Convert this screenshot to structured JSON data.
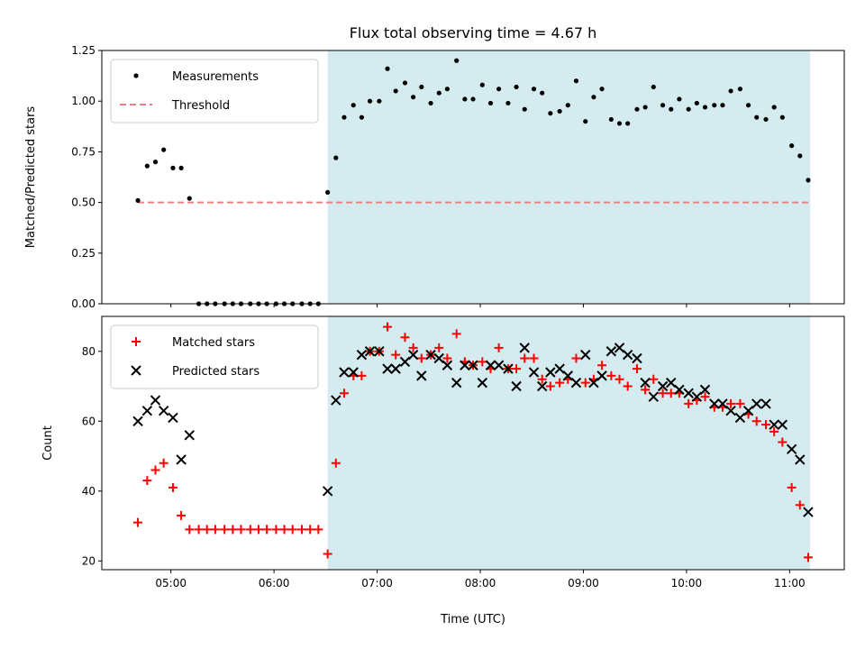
{
  "chart_data": [
    {
      "type": "scatter",
      "title": "Flux total observing time = 4.67 h",
      "xlabel": "",
      "ylabel": "Matched/Predicted stars",
      "ylim": [
        0,
        1.25
      ],
      "yticks": [
        0,
        0.25,
        0.5,
        0.75,
        1.0,
        1.25
      ],
      "ytick_labels": [
        "0.00",
        "0.25",
        "0.50",
        "0.75",
        "1.00",
        "1.25"
      ],
      "xlim_hours": [
        4.33,
        11.53
      ],
      "xticks_hours": [
        5,
        6,
        7,
        8,
        9,
        10,
        11
      ],
      "xtick_labels": [],
      "shaded_region_hours": [
        6.52,
        11.2
      ],
      "shade_color": "#d4ebf0",
      "legend_position": "upper-left",
      "threshold": {
        "label": "Threshold",
        "value": 0.5,
        "x_hours": [
          4.68,
          11.2
        ],
        "color": "#f08080",
        "style": "dashed"
      },
      "series": [
        {
          "name": "Measurements",
          "marker": "dot",
          "color": "#000000",
          "x_hours": [
            4.68,
            4.77,
            4.85,
            4.93,
            5.02,
            5.1,
            5.18,
            5.27,
            5.35,
            5.43,
            5.52,
            5.6,
            5.68,
            5.77,
            5.85,
            5.93,
            6.02,
            6.1,
            6.18,
            6.27,
            6.35,
            6.43,
            6.52,
            6.6,
            6.68,
            6.77,
            6.85,
            6.93,
            7.02,
            7.1,
            7.18,
            7.27,
            7.35,
            7.43,
            7.52,
            7.6,
            7.68,
            7.77,
            7.85,
            7.93,
            8.02,
            8.1,
            8.18,
            8.27,
            8.35,
            8.43,
            8.52,
            8.6,
            8.68,
            8.77,
            8.85,
            8.93,
            9.02,
            9.1,
            9.18,
            9.27,
            9.35,
            9.43,
            9.52,
            9.6,
            9.68,
            9.77,
            9.85,
            9.93,
            10.02,
            10.1,
            10.18,
            10.27,
            10.35,
            10.43,
            10.52,
            10.6,
            10.68,
            10.77,
            10.85,
            10.93,
            11.02,
            11.1,
            11.18
          ],
          "y": [
            0.51,
            0.68,
            0.7,
            0.76,
            0.67,
            0.67,
            0.52,
            0.0,
            0.0,
            0.0,
            0.0,
            0.0,
            0.0,
            0.0,
            0.0,
            0.0,
            0.0,
            0.0,
            0.0,
            0.0,
            0.0,
            0.0,
            0.55,
            0.72,
            0.92,
            0.98,
            0.92,
            1.0,
            1.0,
            1.16,
            1.05,
            1.09,
            1.02,
            1.07,
            0.99,
            1.04,
            1.06,
            1.2,
            1.01,
            1.01,
            1.08,
            0.99,
            1.06,
            0.99,
            1.07,
            0.96,
            1.06,
            1.04,
            0.94,
            0.95,
            0.98,
            1.1,
            0.9,
            1.02,
            1.06,
            0.91,
            0.89,
            0.89,
            0.96,
            0.97,
            1.07,
            0.98,
            0.96,
            1.01,
            0.96,
            0.99,
            0.97,
            0.98,
            0.98,
            1.05,
            1.06,
            0.98,
            0.92,
            0.91,
            0.97,
            0.92,
            0.78,
            0.73,
            0.61
          ]
        }
      ]
    },
    {
      "type": "scatter",
      "title": "",
      "xlabel": "Time (UTC)",
      "ylabel": "Count",
      "ylim": [
        17.5,
        90
      ],
      "yticks": [
        20,
        40,
        60,
        80
      ],
      "ytick_labels": [
        "20",
        "40",
        "60",
        "80"
      ],
      "xlim_hours": [
        4.33,
        11.53
      ],
      "xticks_hours": [
        5,
        6,
        7,
        8,
        9,
        10,
        11
      ],
      "xtick_labels": [
        "05:00",
        "06:00",
        "07:00",
        "08:00",
        "09:00",
        "10:00",
        "11:00"
      ],
      "shaded_region_hours": [
        6.52,
        11.2
      ],
      "shade_color": "#d4ebf0",
      "legend_position": "upper-left",
      "series": [
        {
          "name": "Matched stars",
          "marker": "plus",
          "color": "#ff0000",
          "x_hours": [
            4.68,
            4.77,
            4.85,
            4.93,
            5.02,
            5.1,
            5.18,
            5.27,
            5.35,
            5.43,
            5.52,
            5.6,
            5.68,
            5.77,
            5.85,
            5.93,
            6.02,
            6.1,
            6.18,
            6.27,
            6.35,
            6.43,
            6.52,
            6.6,
            6.68,
            6.77,
            6.85,
            6.93,
            7.02,
            7.1,
            7.18,
            7.27,
            7.35,
            7.43,
            7.52,
            7.6,
            7.68,
            7.77,
            7.85,
            7.93,
            8.02,
            8.1,
            8.18,
            8.27,
            8.35,
            8.43,
            8.52,
            8.6,
            8.68,
            8.77,
            8.85,
            8.93,
            9.02,
            9.1,
            9.18,
            9.27,
            9.35,
            9.43,
            9.52,
            9.6,
            9.68,
            9.77,
            9.85,
            9.93,
            10.02,
            10.1,
            10.18,
            10.27,
            10.35,
            10.43,
            10.52,
            10.6,
            10.68,
            10.77,
            10.85,
            10.93,
            11.02,
            11.1,
            11.18
          ],
          "y": [
            31,
            43,
            46,
            48,
            41,
            33,
            29,
            29,
            29,
            29,
            29,
            29,
            29,
            29,
            29,
            29,
            29,
            29,
            29,
            29,
            29,
            29,
            22,
            48,
            68,
            73,
            73,
            80,
            80,
            87,
            79,
            84,
            81,
            78,
            79,
            81,
            78,
            85,
            77,
            76,
            77,
            75,
            81,
            75,
            75,
            78,
            78,
            72,
            70,
            71,
            72,
            78,
            71,
            72,
            76,
            73,
            72,
            70,
            75,
            69,
            72,
            68,
            68,
            68,
            65,
            66,
            67,
            64,
            64,
            65,
            65,
            62,
            60,
            59,
            57,
            54,
            41,
            36,
            21
          ]
        },
        {
          "name": "Predicted stars",
          "marker": "x",
          "color": "#000000",
          "x_hours": [
            4.68,
            4.77,
            4.85,
            4.93,
            5.02,
            5.1,
            5.18,
            6.52,
            6.6,
            6.68,
            6.77,
            6.85,
            6.93,
            7.02,
            7.1,
            7.18,
            7.27,
            7.35,
            7.43,
            7.52,
            7.6,
            7.68,
            7.77,
            7.85,
            7.93,
            8.02,
            8.1,
            8.18,
            8.27,
            8.35,
            8.43,
            8.52,
            8.6,
            8.68,
            8.77,
            8.85,
            8.93,
            9.02,
            9.1,
            9.18,
            9.27,
            9.35,
            9.43,
            9.52,
            9.6,
            9.68,
            9.77,
            9.85,
            9.93,
            10.02,
            10.1,
            10.18,
            10.27,
            10.35,
            10.43,
            10.52,
            10.6,
            10.68,
            10.77,
            10.85,
            10.93,
            11.02,
            11.1,
            11.18
          ],
          "y": [
            60,
            63,
            66,
            63,
            61,
            49,
            56,
            40,
            66,
            74,
            74,
            79,
            80,
            80,
            75,
            75,
            77,
            79,
            73,
            79,
            78,
            76,
            71,
            76,
            76,
            71,
            76,
            76,
            75,
            70,
            81,
            74,
            70,
            74,
            75,
            73,
            71,
            79,
            71,
            73,
            80,
            81,
            79,
            78,
            71,
            67,
            70,
            71,
            69,
            68,
            67,
            69,
            65,
            65,
            63,
            61,
            63,
            65,
            65,
            59,
            59,
            52,
            49,
            34
          ]
        }
      ]
    }
  ]
}
